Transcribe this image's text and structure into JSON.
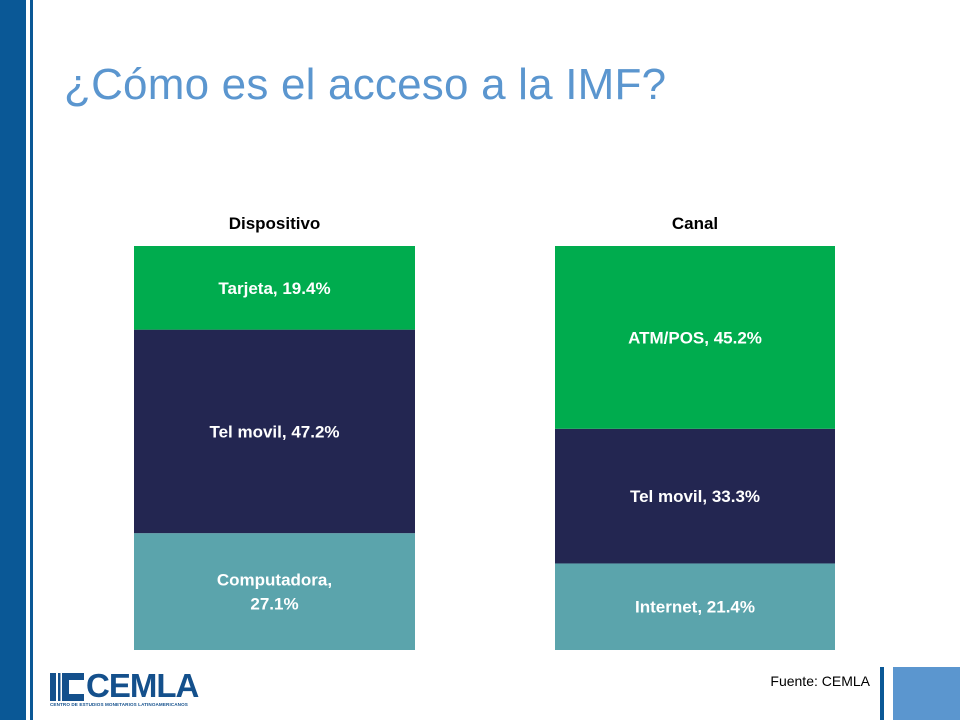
{
  "title": "¿Cómo es el acceso a la IMF?",
  "colors": {
    "sidebar": "#0a5896",
    "title": "#5b96cf",
    "green": "#00ac4e",
    "navy": "#232651",
    "teal": "#5ba4ac"
  },
  "chart_data": [
    {
      "type": "bar",
      "stacked": true,
      "title": "Dispositivo",
      "segments": [
        {
          "label_lines": [
            "Computadora,",
            "27.1%"
          ],
          "category": "Computadora",
          "value": 27.1,
          "color": "#5ba4ac"
        },
        {
          "label_lines": [
            "Tel movil, 47.2%"
          ],
          "category": "Tel movil",
          "value": 47.2,
          "color": "#232651"
        },
        {
          "label_lines": [
            "Tarjeta, 19.4%"
          ],
          "category": "Tarjeta",
          "value": 19.4,
          "color": "#00ac4e"
        }
      ]
    },
    {
      "type": "bar",
      "stacked": true,
      "title": "Canal",
      "segments": [
        {
          "label_lines": [
            "Internet, 21.4%"
          ],
          "category": "Internet",
          "value": 21.4,
          "color": "#5ba4ac"
        },
        {
          "label_lines": [
            "Tel movil, 33.3%"
          ],
          "category": "Tel movil",
          "value": 33.3,
          "color": "#232651"
        },
        {
          "label_lines": [
            "ATM/POS, 45.2%"
          ],
          "category": "ATM/POS",
          "value": 45.2,
          "color": "#00ac4e"
        }
      ]
    }
  ],
  "logo": {
    "text": "CEMLA",
    "subtitle": "CENTRO DE ESTUDIOS MONETARIOS LATINOAMERICANOS"
  },
  "source": "Fuente: CEMLA"
}
